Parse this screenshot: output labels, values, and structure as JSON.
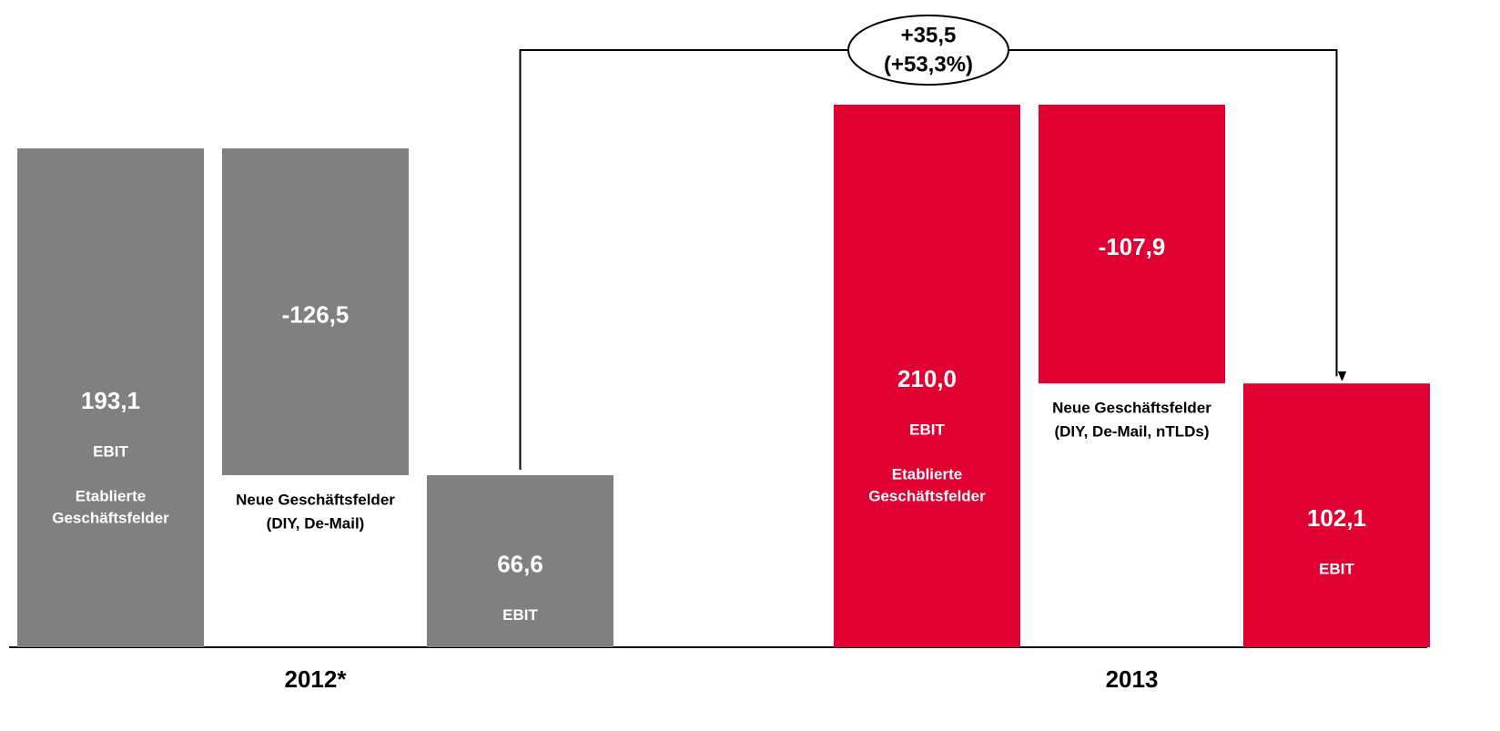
{
  "chart_data": {
    "type": "waterfall",
    "groups": [
      {
        "name": "2012*",
        "color": "#808080",
        "bars": [
          {
            "value": 193.1,
            "value_label": "193,1",
            "measure": "relative",
            "labels": [
              "EBIT",
              "Etablierte",
              "Geschäftsfelder"
            ]
          },
          {
            "value": -126.5,
            "value_label": "-126,5",
            "measure": "relative",
            "labels": [
              "Neue Geschäftsfelder",
              "(DIY, De-Mail)"
            ]
          },
          {
            "value": 66.6,
            "value_label": "66,6",
            "measure": "total",
            "labels": [
              "EBIT"
            ]
          }
        ]
      },
      {
        "name": "2013",
        "color": "#e00031",
        "bars": [
          {
            "value": 210.0,
            "value_label": "210,0",
            "measure": "relative",
            "labels": [
              "EBIT",
              "Etablierte",
              "Geschäftsfelder"
            ]
          },
          {
            "value": -107.9,
            "value_label": "-107,9",
            "measure": "relative",
            "labels": [
              "Neue Geschäftsfelder",
              "(DIY, De-Mail, nTLDs)"
            ]
          },
          {
            "value": 102.1,
            "value_label": "102,1",
            "measure": "total",
            "labels": [
              "EBIT"
            ]
          }
        ]
      }
    ],
    "change": {
      "value": 35.5,
      "label": "+35,5",
      "percent": 53.3,
      "percent_label": "(+53,3%)"
    }
  }
}
